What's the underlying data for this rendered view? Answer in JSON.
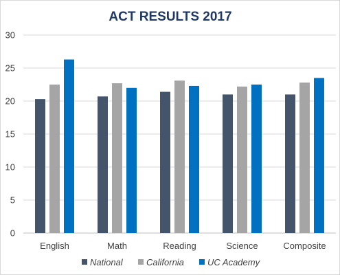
{
  "chart_data": {
    "type": "bar",
    "title": "ACT RESULTS 2017",
    "xlabel": "",
    "ylabel": "",
    "categories": [
      "English",
      "Math",
      "Reading",
      "Science",
      "Composite"
    ],
    "ylim": [
      0,
      30
    ],
    "yticks": [
      "0",
      "5",
      "10",
      "15",
      "20",
      "25",
      "30"
    ],
    "grid": true,
    "legend_position": "bottom",
    "series": [
      {
        "name": "National",
        "values": [
          20.3,
          20.7,
          21.4,
          21.0,
          21.0
        ],
        "color": "#44546a"
      },
      {
        "name": "California",
        "values": [
          22.5,
          22.7,
          23.1,
          22.2,
          22.8
        ],
        "color": "#a5a5a5"
      },
      {
        "name": "UC Academy",
        "values": [
          26.3,
          22.0,
          22.3,
          22.5,
          23.5
        ],
        "color": "#0070c0"
      }
    ]
  }
}
